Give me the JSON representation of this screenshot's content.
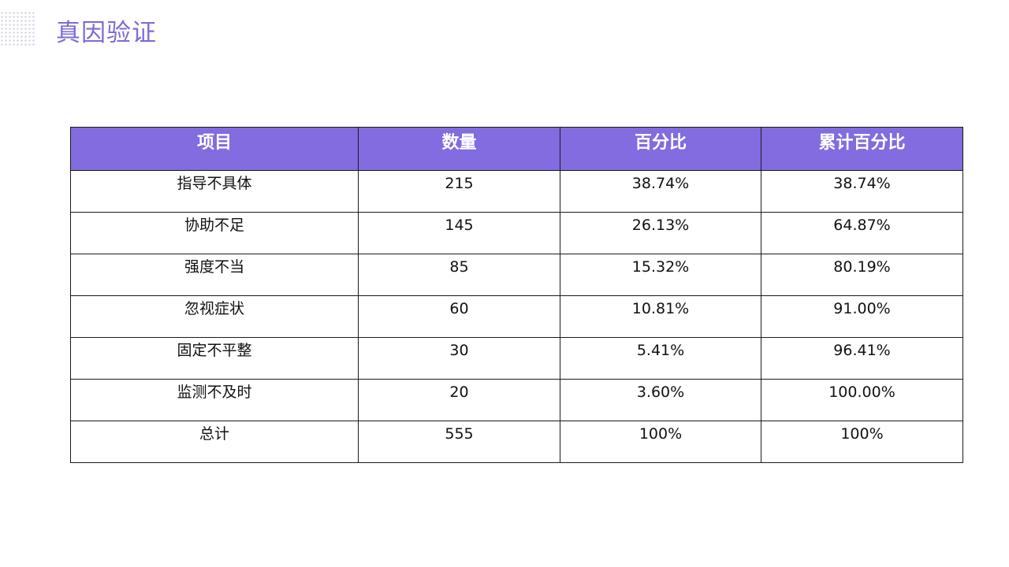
{
  "page": {
    "title": "真因验证"
  },
  "table": {
    "headers": [
      "项目",
      "数量",
      "百分比",
      "累计百分比"
    ],
    "rows": [
      [
        "指导不具体",
        "215",
        "38.74%",
        "38.74%"
      ],
      [
        "协助不足",
        "145",
        "26.13%",
        "64.87%"
      ],
      [
        "强度不当",
        "85",
        "15.32%",
        "80.19%"
      ],
      [
        "忽视症状",
        "60",
        "10.81%",
        "91.00%"
      ],
      [
        "固定不平整",
        "30",
        "5.41%",
        "96.41%"
      ],
      [
        "监测不及时",
        "20",
        "3.60%",
        "100.00%"
      ],
      [
        "总计",
        "555",
        "100%",
        "100%"
      ]
    ]
  },
  "colors": {
    "accent": "#7f6ad8",
    "header_bg": "#836be0"
  }
}
